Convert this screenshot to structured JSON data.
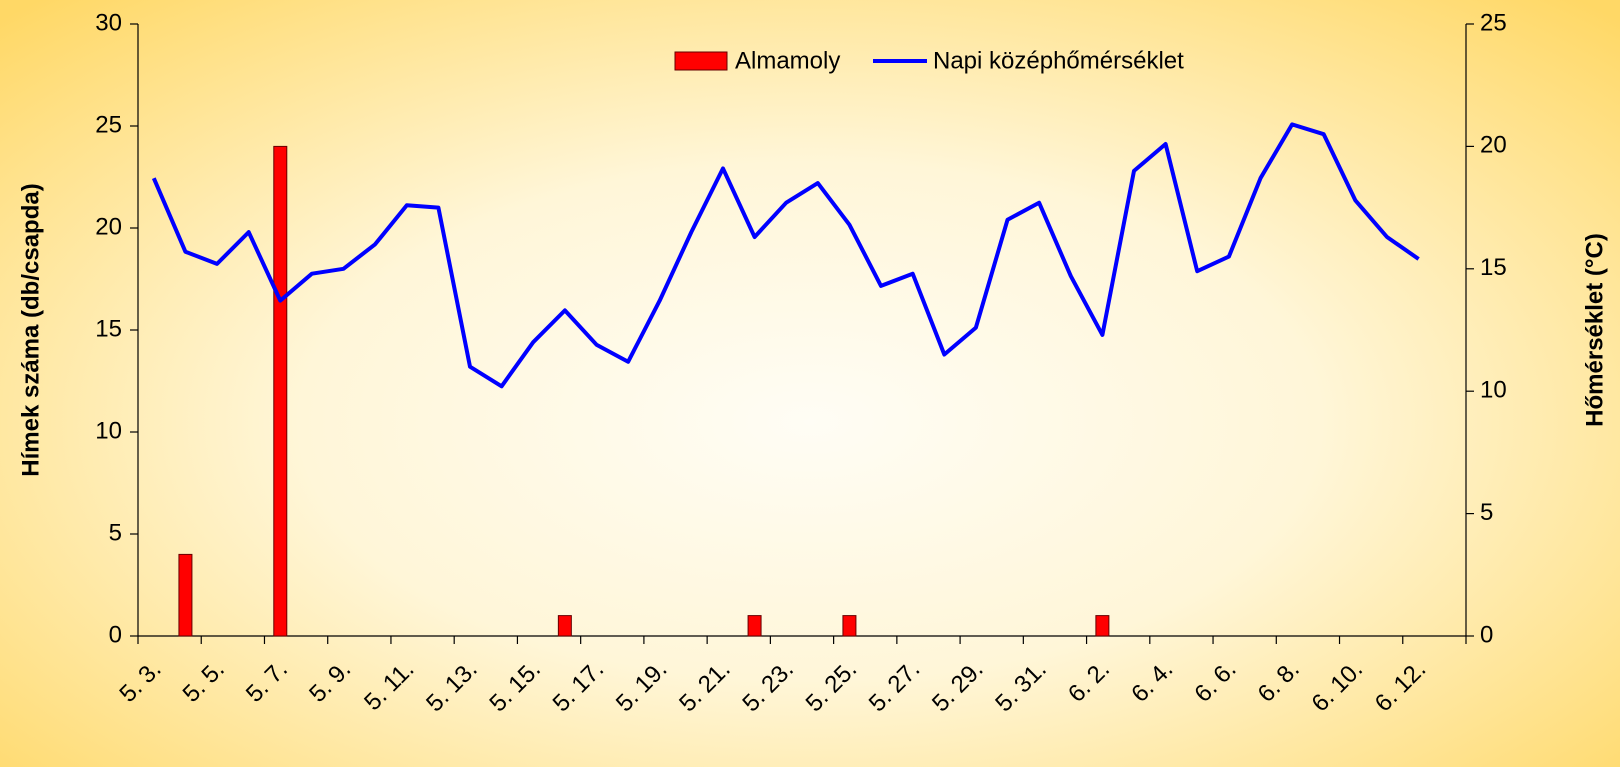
{
  "chart_data": {
    "type": "bar_line",
    "categories": [
      "5. 3.",
      null,
      "5. 5.",
      null,
      "5. 7.",
      null,
      "5. 9.",
      null,
      "5. 11.",
      null,
      "5. 13.",
      null,
      "5. 15.",
      null,
      "5. 17.",
      null,
      "5. 19.",
      null,
      "5. 21.",
      null,
      "5. 23.",
      null,
      "5. 25.",
      null,
      "5. 27.",
      null,
      "5. 29.",
      null,
      "5. 31.",
      null,
      "6. 2.",
      null,
      "6. 4.",
      null,
      "6. 6.",
      null,
      "6. 8.",
      null,
      "6. 10.",
      null,
      "6. 12.",
      null
    ],
    "series": [
      {
        "name": "Almamoly",
        "type": "bar",
        "color": "#ff0000",
        "values": [
          0,
          4,
          0,
          0,
          24,
          0,
          0,
          0,
          0,
          0,
          0,
          0,
          0,
          1,
          0,
          0,
          0,
          0,
          0,
          1,
          0,
          0,
          1,
          0,
          0,
          0,
          0,
          0,
          0,
          0,
          1,
          0,
          0,
          0,
          0,
          0,
          0,
          0,
          0,
          0,
          0,
          null
        ]
      },
      {
        "name": "Napi középhőmérséklet",
        "type": "line",
        "color": "#0000ff",
        "axis": "y2",
        "values": [
          18.7,
          15.7,
          15.2,
          16.5,
          13.7,
          14.8,
          15.0,
          16.0,
          17.6,
          17.5,
          11.0,
          10.2,
          12.0,
          13.3,
          11.9,
          11.2,
          13.7,
          16.5,
          19.1,
          16.3,
          17.7,
          18.5,
          16.8,
          14.3,
          14.8,
          11.5,
          12.6,
          17.0,
          17.7,
          14.7,
          12.3,
          19.0,
          20.1,
          14.9,
          15.5,
          18.7,
          20.9,
          20.5,
          17.8,
          16.3,
          15.4,
          null
        ]
      }
    ],
    "y_label": "Hímek száma (db/csapda)",
    "y2_label": "Hőmérséklet (°C)",
    "ylim": [
      0,
      30
    ],
    "yticks": [
      0,
      5,
      10,
      15,
      20,
      25,
      30
    ],
    "y2lim": [
      0,
      25
    ],
    "y2ticks": [
      0,
      5,
      10,
      15,
      20,
      25
    ],
    "grid": false
  }
}
